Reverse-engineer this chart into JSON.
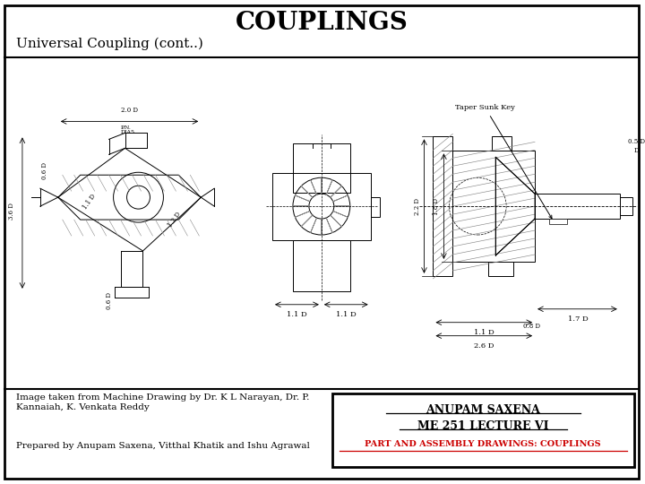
{
  "title": "COUPLINGS",
  "subtitle": "Universal Coupling (cont..)",
  "image_credit": "Image taken from Machine Drawing by Dr. K L Narayan, Dr. P.\nKannaiah, K. Venkata Reddy",
  "prepared_by": "Prepared by Anupam Saxena, Vitthal Khatik and Ishu Agrawal",
  "box_line1": "ANUPAM SAXENA",
  "box_line2": "ME 251 LECTURE VI",
  "box_line3": "PART AND ASSEMBLY DRAWINGS: COUPLINGS",
  "bg_color": "#ffffff",
  "border_color": "#000000",
  "title_color": "#000000",
  "subtitle_color": "#000000",
  "box_text_color_1": "#000000",
  "box_text_color_2": "#000000",
  "box_text_color_3": "#cc0000",
  "drawing_color": "#888888"
}
